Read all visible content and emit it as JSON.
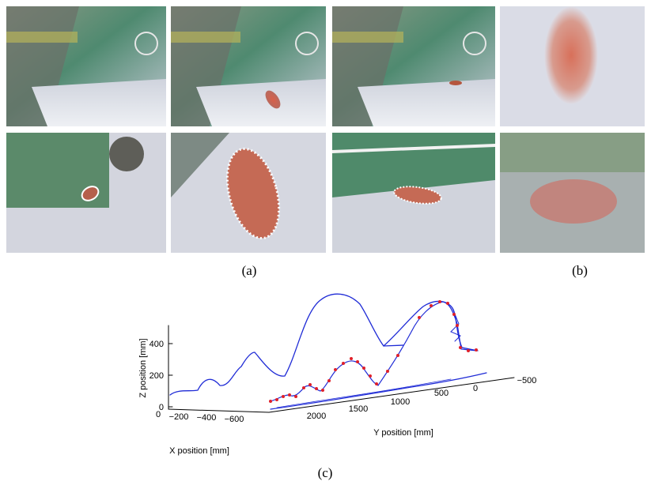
{
  "figure": {
    "panel_labels": [
      "(a)",
      "(b)",
      "(c)"
    ],
    "plot": {
      "z_axis_label": "Z position [mm]",
      "y_axis_label": "Y position [mm]",
      "x_axis_label": "X position [mm]",
      "z_ticks": [
        "0",
        "200",
        "400"
      ],
      "x_ticks": [
        "0",
        "−200",
        "−400",
        "−600"
      ],
      "y_ticks": [
        "2000",
        "1500",
        "1000",
        "500",
        "0",
        "−500"
      ]
    }
  }
}
